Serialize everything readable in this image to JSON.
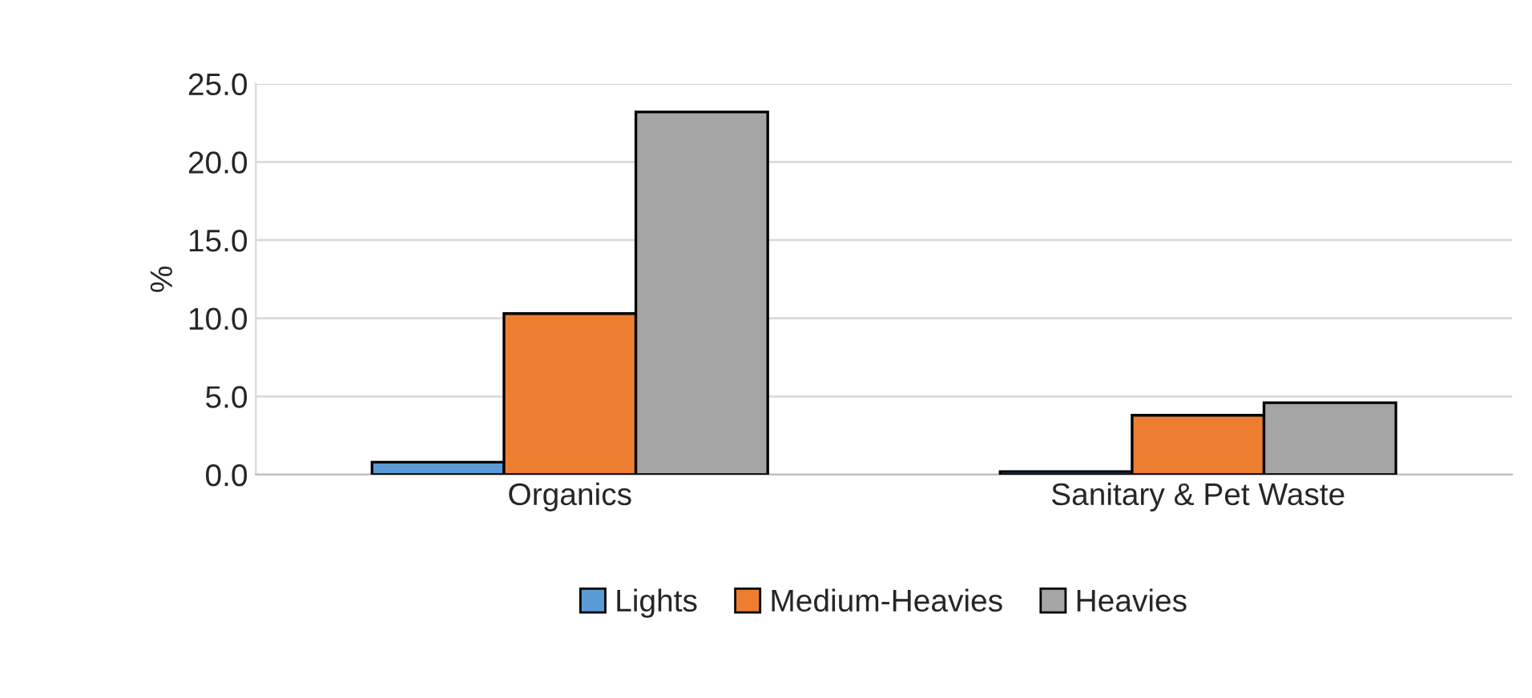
{
  "chart_data": {
    "type": "bar",
    "ylabel": "%",
    "categories": [
      "Organics",
      "Sanitary & Pet Waste"
    ],
    "series": [
      {
        "name": "Lights",
        "color": "#5b9bd5",
        "values": [
          0.8,
          0.2
        ]
      },
      {
        "name": "Medium-Heavies",
        "color": "#ed7d31",
        "values": [
          10.3,
          3.8
        ]
      },
      {
        "name": "Heavies",
        "color": "#a5a5a5",
        "values": [
          23.2,
          4.6
        ]
      }
    ],
    "ylim": [
      0,
      25
    ],
    "yticks": [
      {
        "value": 0,
        "label": "0.0"
      },
      {
        "value": 5,
        "label": "5.0"
      },
      {
        "value": 10,
        "label": "10.0"
      },
      {
        "value": 15,
        "label": "15.0"
      },
      {
        "value": 20,
        "label": "20.0"
      },
      {
        "value": 25,
        "label": "25.0"
      }
    ],
    "grid": "y",
    "legend": "bottom"
  }
}
